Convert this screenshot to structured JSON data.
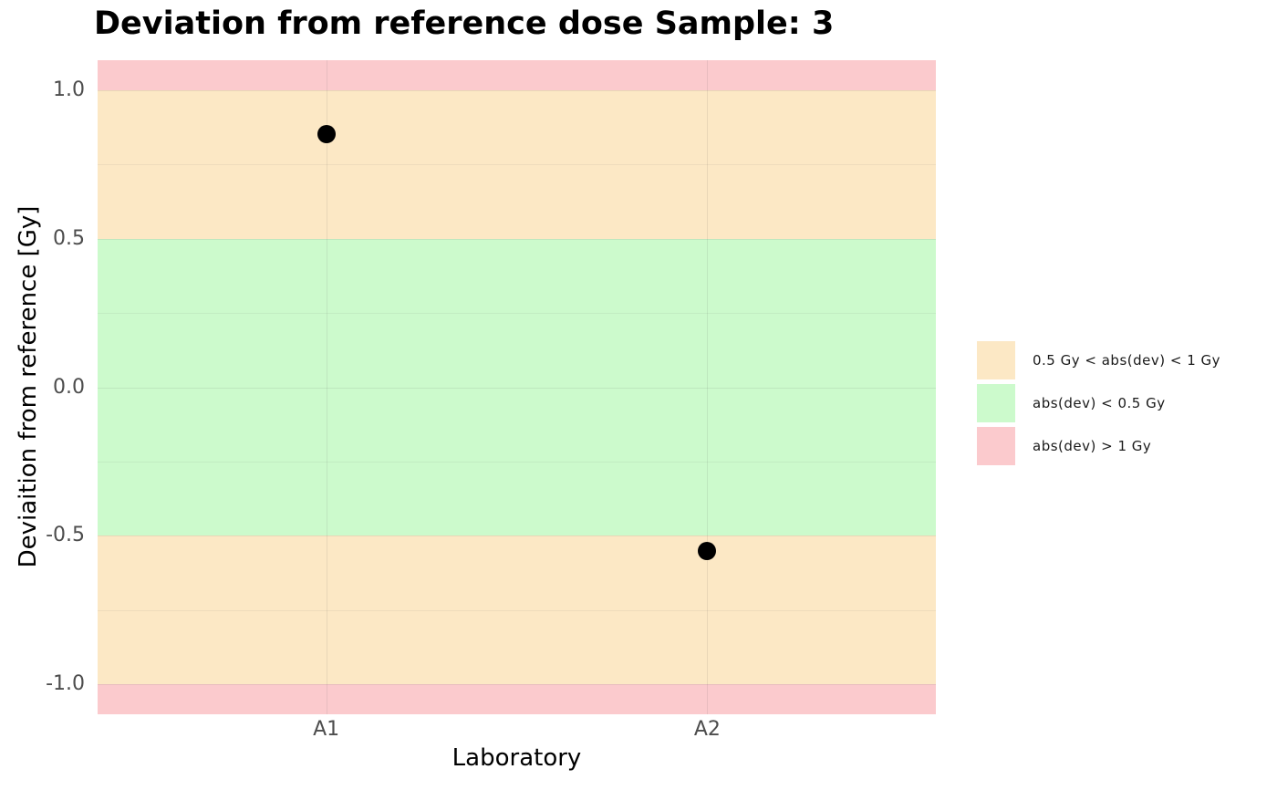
{
  "chart_data": {
    "type": "scatter",
    "title": "Deviation from reference dose Sample: 3",
    "xlabel": "Laboratory",
    "ylabel": "Deviaition from reference [Gy]",
    "categories": [
      "A1",
      "A2"
    ],
    "values": [
      0.85,
      -0.55
    ],
    "point_color": "#000000",
    "ylim": [
      -1.1,
      1.1
    ],
    "grid": true,
    "legend_position": "right",
    "y_ticks": [
      {
        "label": "1.0",
        "value": 1.0
      },
      {
        "label": "0.5",
        "value": 0.5
      },
      {
        "label": "0.0",
        "value": 0.0
      },
      {
        "label": "-0.5",
        "value": -0.5
      },
      {
        "label": "-1.0",
        "value": -1.0
      }
    ],
    "y_minor_ticks": [
      0.75,
      0.25,
      -0.25,
      -0.75
    ],
    "bands": [
      {
        "from": 1.0,
        "to": 1.1,
        "color": "#fbcacd",
        "meaning": "abs(dev) > 1 Gy"
      },
      {
        "from": 0.5,
        "to": 1.0,
        "color": "#fce8c5",
        "meaning": "0.5 Gy < abs(dev) < 1 Gy"
      },
      {
        "from": -0.5,
        "to": 0.5,
        "color": "#ccfacc",
        "meaning": "abs(dev) < 0.5 Gy"
      },
      {
        "from": -1.0,
        "to": -0.5,
        "color": "#fce8c5",
        "meaning": "0.5 Gy < abs(dev) < 1 Gy"
      },
      {
        "from": -1.1,
        "to": -1.0,
        "color": "#fbcacd",
        "meaning": "abs(dev) > 1 Gy"
      }
    ],
    "legend_entries": [
      {
        "label": "0.5 Gy < abs(dev) < 1 Gy",
        "color": "#fce8c5"
      },
      {
        "label": "abs(dev) < 0.5 Gy",
        "color": "#ccfacc"
      },
      {
        "label": "abs(dev) > 1 Gy",
        "color": "#fbcacd"
      }
    ]
  }
}
